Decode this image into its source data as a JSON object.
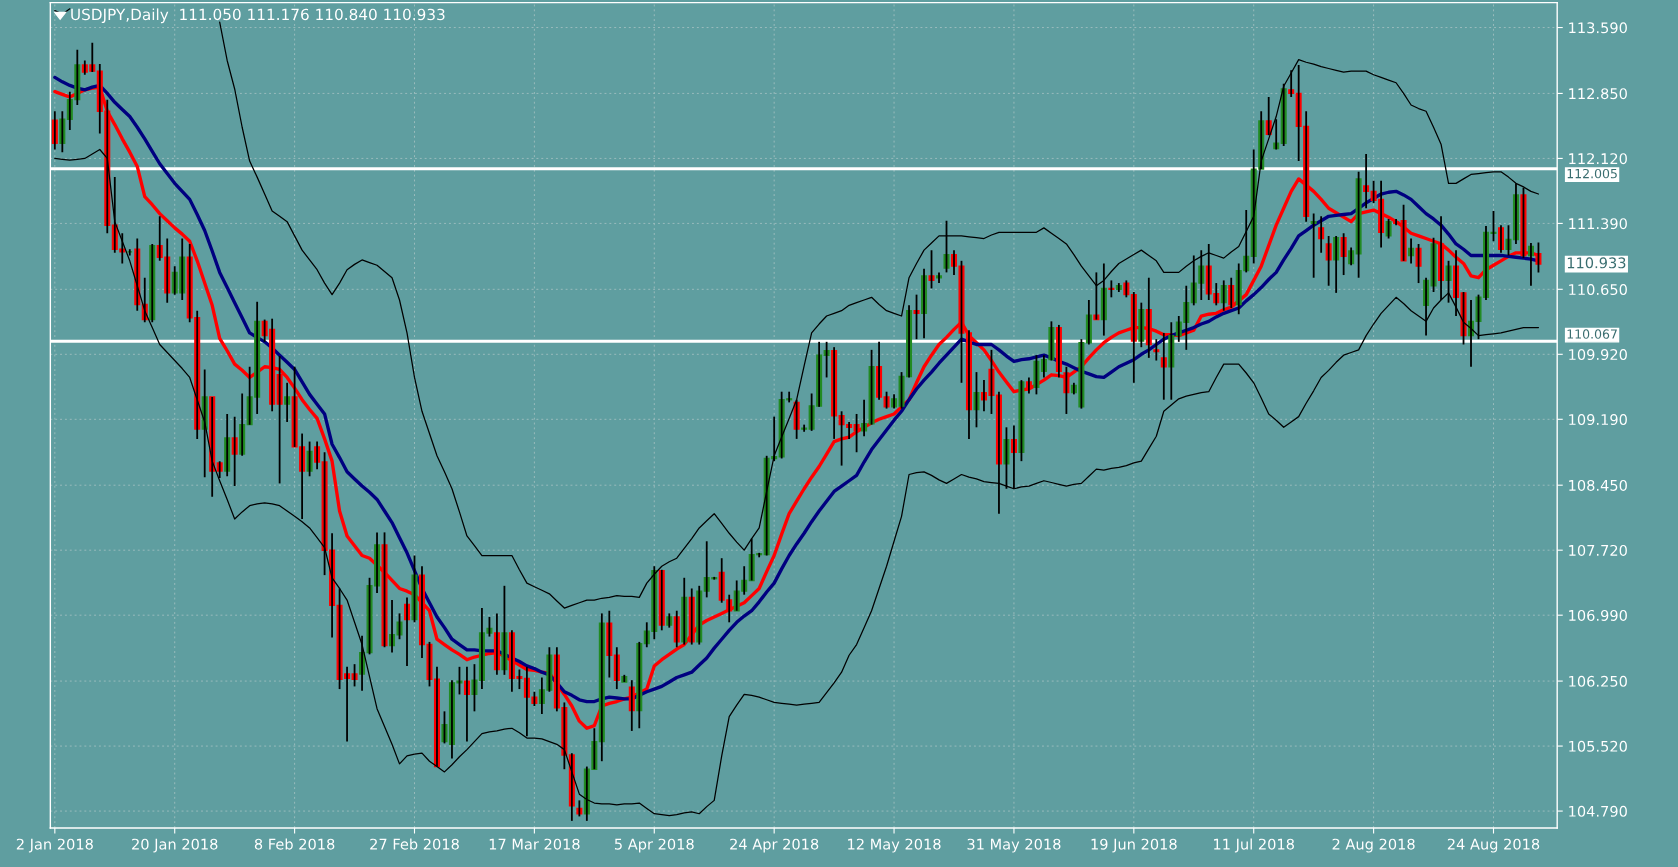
{
  "chart_data": {
    "type": "candlestick",
    "title": "USDJPY,Daily  111.050 111.176 110.840 110.933",
    "categories": [
      "2 Jan 2018",
      null,
      null,
      null,
      null,
      null,
      null,
      null,
      null,
      null,
      null,
      null,
      null,
      null,
      null,
      null,
      "20 Jan 2018",
      null,
      null,
      null,
      null,
      null,
      null,
      null,
      null,
      null,
      null,
      null,
      null,
      null,
      null,
      null,
      "8 Feb 2018",
      null,
      null,
      null,
      null,
      null,
      null,
      null,
      null,
      null,
      null,
      null,
      null,
      null,
      null,
      null,
      "27 Feb 2018",
      null,
      null,
      null,
      null,
      null,
      null,
      null,
      null,
      null,
      null,
      null,
      null,
      null,
      null,
      null,
      "17 Mar 2018",
      null,
      null,
      null,
      null,
      null,
      null,
      null,
      null,
      null,
      null,
      null,
      null,
      null,
      null,
      null,
      "5 Apr 2018",
      null,
      null,
      null,
      null,
      null,
      null,
      null,
      null,
      null,
      null,
      null,
      null,
      null,
      null,
      null,
      "24 Apr 2018",
      null,
      null,
      null,
      null,
      null,
      null,
      null,
      null,
      null,
      null,
      null,
      null,
      null,
      null,
      null,
      "12 May 2018",
      null,
      null,
      null,
      null,
      null,
      null,
      null,
      null,
      null,
      null,
      null,
      null,
      null,
      null,
      null,
      "31 May 2018",
      null,
      null,
      null,
      null,
      null,
      null,
      null,
      null,
      null,
      null,
      null,
      null,
      null,
      null,
      null,
      "19 Jun 2018",
      null,
      null,
      null,
      null,
      null,
      null,
      null,
      null,
      null,
      null,
      null,
      null,
      null,
      null,
      null,
      "11 Jul 2018",
      null,
      null,
      null,
      null,
      null,
      null,
      null,
      null,
      null,
      null,
      null,
      null,
      null,
      null,
      null,
      "2 Aug 2018",
      null,
      null,
      null,
      null,
      null,
      null,
      null,
      null,
      null,
      null,
      null,
      null,
      null,
      null,
      null,
      "24 Aug 2018",
      null,
      null,
      null,
      null,
      null,
      null
    ],
    "ohlc": [
      [
        112.55,
        112.65,
        112.22,
        112.29
      ],
      [
        112.29,
        112.65,
        112.19,
        112.56
      ],
      [
        112.56,
        112.87,
        112.44,
        112.78
      ],
      [
        112.78,
        113.34,
        112.72,
        113.17
      ],
      [
        113.17,
        113.22,
        113.06,
        113.09
      ],
      [
        113.17,
        113.42,
        113.09,
        113.1
      ],
      [
        113.1,
        113.18,
        112.4,
        112.65
      ],
      [
        112.65,
        112.78,
        111.28,
        111.37
      ],
      [
        111.37,
        111.91,
        111.06,
        111.1
      ],
      [
        111.1,
        111.28,
        110.94,
        111.07
      ],
      [
        111.07,
        111.1,
        111.03,
        111.07
      ],
      [
        111.1,
        111.22,
        110.41,
        110.48
      ],
      [
        110.48,
        110.78,
        110.28,
        110.31
      ],
      [
        110.31,
        111.16,
        110.28,
        111.14
      ],
      [
        111.14,
        111.47,
        110.97,
        111.01
      ],
      [
        111.01,
        111.22,
        110.5,
        110.61
      ],
      [
        110.61,
        110.91,
        110.59,
        110.84
      ],
      [
        110.61,
        111.22,
        110.53,
        111.01
      ],
      [
        111.01,
        111.16,
        110.28,
        110.33
      ],
      [
        110.33,
        110.41,
        108.97,
        109.08
      ],
      [
        109.08,
        109.75,
        108.54,
        109.44
      ],
      [
        109.44,
        109.44,
        108.32,
        108.61
      ],
      [
        108.7,
        108.72,
        108.53,
        108.61
      ],
      [
        108.61,
        109.25,
        108.55,
        108.98
      ],
      [
        108.98,
        109.22,
        108.44,
        108.8
      ],
      [
        108.8,
        109.48,
        108.78,
        109.13
      ],
      [
        109.13,
        109.78,
        109.13,
        109.44
      ],
      [
        109.44,
        110.51,
        109.25,
        110.29
      ],
      [
        110.29,
        110.31,
        110.06,
        110.13
      ],
      [
        110.2,
        110.32,
        109.28,
        109.36
      ],
      [
        109.69,
        109.9,
        108.47,
        109.36
      ],
      [
        109.36,
        109.6,
        109.16,
        109.44
      ],
      [
        109.44,
        109.78,
        108.88,
        108.88
      ],
      [
        108.88,
        109.03,
        108.07,
        108.61
      ],
      [
        108.61,
        108.94,
        108.55,
        108.83
      ],
      [
        108.88,
        108.94,
        108.63,
        108.71
      ],
      [
        108.71,
        108.82,
        107.44,
        107.72
      ],
      [
        107.72,
        107.91,
        106.74,
        107.1
      ],
      [
        107.1,
        107.29,
        106.16,
        106.27
      ],
      [
        106.33,
        106.41,
        105.57,
        106.28
      ],
      [
        106.33,
        106.44,
        106.19,
        106.27
      ],
      [
        106.33,
        106.76,
        106.14,
        106.57
      ],
      [
        106.57,
        107.41,
        106.55,
        107.32
      ],
      [
        107.32,
        107.92,
        107.24,
        107.78
      ],
      [
        107.78,
        107.92,
        106.63,
        106.65
      ],
      [
        106.65,
        107.16,
        106.57,
        106.77
      ],
      [
        106.77,
        107.01,
        106.72,
        106.91
      ],
      [
        107.11,
        107.19,
        106.42,
        106.94
      ],
      [
        106.94,
        107.66,
        106.91,
        107.44
      ],
      [
        107.44,
        107.54,
        106.51,
        106.66
      ],
      [
        106.66,
        106.69,
        106.19,
        106.27
      ],
      [
        106.27,
        106.41,
        105.29,
        105.29
      ],
      [
        105.57,
        105.91,
        105.55,
        105.76
      ],
      [
        105.54,
        106.26,
        105.38,
        106.23
      ],
      [
        106.23,
        106.41,
        106.1,
        106.25
      ],
      [
        106.25,
        106.41,
        105.57,
        106.1
      ],
      [
        106.1,
        106.44,
        105.91,
        106.26
      ],
      [
        106.26,
        107.07,
        106.16,
        106.79
      ],
      [
        106.79,
        106.97,
        106.75,
        106.84
      ],
      [
        106.79,
        107.01,
        106.32,
        106.38
      ],
      [
        106.38,
        107.32,
        106.32,
        106.79
      ],
      [
        106.79,
        106.82,
        106.13,
        106.28
      ],
      [
        106.3,
        106.38,
        106.16,
        106.28
      ],
      [
        106.28,
        106.41,
        105.63,
        106.07
      ],
      [
        106.07,
        106.13,
        105.97,
        106.0
      ],
      [
        106.0,
        106.29,
        105.88,
        106.15
      ],
      [
        106.15,
        106.63,
        106.13,
        106.54
      ],
      [
        106.54,
        106.63,
        105.91,
        105.95
      ],
      [
        105.95,
        106.01,
        105.26,
        105.42
      ],
      [
        105.42,
        105.44,
        104.68,
        104.85
      ],
      [
        104.82,
        104.91,
        104.73,
        104.76
      ],
      [
        104.76,
        105.29,
        104.68,
        105.26
      ],
      [
        105.26,
        105.72,
        105.26,
        105.57
      ],
      [
        105.57,
        107.01,
        105.35,
        106.9
      ],
      [
        106.9,
        107.04,
        106.29,
        106.54
      ],
      [
        106.54,
        106.63,
        106.16,
        106.26
      ],
      [
        106.24,
        106.32,
        106.24,
        106.3
      ],
      [
        106.18,
        106.26,
        105.69,
        105.92
      ],
      [
        105.92,
        106.69,
        105.72,
        106.67
      ],
      [
        106.67,
        106.91,
        106.63,
        106.81
      ],
      [
        106.81,
        107.54,
        106.72,
        107.49
      ],
      [
        107.49,
        107.5,
        106.82,
        106.88
      ],
      [
        106.88,
        107.01,
        106.85,
        106.97
      ],
      [
        106.97,
        107.04,
        106.63,
        106.69
      ],
      [
        106.69,
        107.41,
        106.66,
        107.19
      ],
      [
        107.19,
        107.29,
        106.66,
        106.69
      ],
      [
        106.69,
        107.32,
        106.66,
        107.26
      ],
      [
        107.26,
        107.82,
        107.19,
        107.41
      ],
      [
        107.4,
        107.42,
        107.39,
        107.41
      ],
      [
        107.47,
        107.63,
        107.13,
        107.16
      ],
      [
        107.16,
        107.22,
        106.91,
        107.04
      ],
      [
        107.04,
        107.38,
        107.04,
        107.26
      ],
      [
        107.26,
        107.54,
        107.22,
        107.38
      ],
      [
        107.38,
        107.85,
        107.38,
        107.67
      ],
      [
        107.67,
        107.69,
        107.64,
        107.68
      ],
      [
        107.67,
        108.78,
        107.66,
        108.75
      ],
      [
        108.75,
        109.22,
        108.72,
        108.77
      ],
      [
        108.77,
        109.5,
        108.75,
        109.41
      ],
      [
        109.41,
        109.5,
        109.38,
        109.42
      ],
      [
        109.38,
        109.41,
        108.97,
        109.08
      ],
      [
        109.08,
        109.13,
        109.05,
        109.09
      ],
      [
        109.08,
        109.48,
        109.06,
        109.34
      ],
      [
        109.34,
        110.06,
        109.33,
        109.91
      ],
      [
        109.91,
        110.06,
        109.66,
        109.96
      ],
      [
        109.96,
        110.0,
        108.97,
        109.23
      ],
      [
        109.23,
        109.28,
        108.67,
        109.13
      ],
      [
        109.13,
        109.16,
        108.97,
        109.1
      ],
      [
        109.13,
        109.25,
        108.82,
        109.06
      ],
      [
        109.06,
        109.41,
        109.0,
        109.14
      ],
      [
        109.14,
        109.97,
        109.13,
        109.78
      ],
      [
        109.78,
        110.06,
        109.41,
        109.44
      ],
      [
        109.44,
        109.5,
        109.31,
        109.33
      ],
      [
        109.33,
        109.47,
        109.31,
        109.42
      ],
      [
        109.34,
        109.72,
        109.31,
        109.67
      ],
      [
        109.67,
        110.47,
        109.66,
        110.41
      ],
      [
        110.41,
        110.59,
        110.09,
        110.38
      ],
      [
        110.38,
        110.88,
        110.1,
        110.8
      ],
      [
        110.8,
        111.09,
        110.66,
        110.75
      ],
      [
        110.78,
        110.84,
        110.72,
        110.8
      ],
      [
        110.89,
        111.42,
        110.84,
        111.04
      ],
      [
        111.04,
        111.09,
        110.81,
        110.91
      ],
      [
        110.91,
        110.97,
        109.6,
        110.16
      ],
      [
        110.16,
        110.19,
        108.97,
        109.3
      ],
      [
        109.3,
        109.72,
        109.1,
        109.49
      ],
      [
        109.49,
        109.63,
        109.28,
        109.41
      ],
      [
        109.75,
        109.97,
        109.25,
        109.46
      ],
      [
        109.46,
        109.5,
        108.13,
        108.69
      ],
      [
        108.69,
        109.1,
        108.41,
        108.96
      ],
      [
        108.96,
        109.12,
        108.41,
        108.82
      ],
      [
        108.82,
        109.63,
        108.72,
        109.61
      ],
      [
        109.61,
        109.66,
        109.48,
        109.55
      ],
      [
        109.55,
        109.91,
        109.47,
        109.84
      ],
      [
        109.73,
        109.91,
        109.66,
        109.86
      ],
      [
        109.86,
        110.29,
        109.85,
        110.22
      ],
      [
        110.22,
        110.25,
        109.66,
        109.73
      ],
      [
        109.71,
        109.78,
        109.25,
        109.49
      ],
      [
        109.49,
        109.6,
        109.47,
        109.57
      ],
      [
        109.33,
        110.09,
        109.31,
        110.05
      ],
      [
        110.05,
        110.53,
        110.03,
        110.36
      ],
      [
        110.36,
        110.84,
        110.31,
        110.31
      ],
      [
        110.31,
        110.94,
        110.13,
        110.66
      ],
      [
        110.66,
        110.75,
        110.56,
        110.65
      ],
      [
        110.65,
        110.72,
        110.62,
        110.69
      ],
      [
        110.72,
        110.75,
        110.56,
        110.59
      ],
      [
        110.59,
        110.62,
        109.6,
        110.07
      ],
      [
        110.07,
        110.5,
        110.0,
        110.42
      ],
      [
        110.42,
        110.78,
        109.88,
        110.03
      ],
      [
        109.97,
        110.09,
        109.85,
        109.95
      ],
      [
        109.88,
        110.16,
        109.41,
        109.78
      ],
      [
        109.78,
        110.28,
        109.41,
        110.13
      ],
      [
        110.13,
        110.35,
        110.06,
        110.28
      ],
      [
        110.28,
        110.69,
        109.97,
        110.5
      ],
      [
        110.5,
        111.03,
        110.47,
        110.72
      ],
      [
        110.72,
        111.09,
        110.53,
        110.91
      ],
      [
        110.91,
        111.16,
        110.53,
        110.6
      ],
      [
        110.6,
        110.72,
        110.47,
        110.5
      ],
      [
        110.5,
        110.75,
        110.41,
        110.69
      ],
      [
        110.69,
        110.78,
        110.44,
        110.48
      ],
      [
        110.48,
        110.94,
        110.37,
        110.86
      ],
      [
        110.86,
        111.54,
        110.84,
        111.02
      ],
      [
        111.02,
        112.22,
        110.94,
        112.0
      ],
      [
        112.0,
        112.65,
        112.0,
        112.54
      ],
      [
        112.54,
        112.81,
        112.38,
        112.39
      ],
      [
        112.23,
        112.56,
        112.22,
        112.29
      ],
      [
        112.29,
        112.96,
        112.26,
        112.9
      ],
      [
        112.89,
        113.11,
        112.81,
        112.85
      ],
      [
        112.85,
        113.17,
        112.09,
        112.48
      ],
      [
        112.48,
        112.65,
        111.41,
        111.47
      ],
      [
        111.39,
        111.5,
        110.78,
        111.41
      ],
      [
        111.34,
        111.47,
        111.06,
        111.22
      ],
      [
        111.16,
        111.25,
        110.69,
        110.98
      ],
      [
        110.98,
        111.25,
        110.61,
        111.23
      ],
      [
        111.23,
        111.28,
        110.81,
        111.02
      ],
      [
        110.94,
        111.12,
        110.92,
        111.08
      ],
      [
        111.05,
        111.97,
        110.78,
        111.89
      ],
      [
        111.81,
        112.17,
        111.56,
        111.75
      ],
      [
        111.75,
        111.87,
        111.62,
        111.65
      ],
      [
        111.66,
        111.87,
        111.12,
        111.29
      ],
      [
        111.25,
        111.44,
        111.22,
        111.41
      ],
      [
        111.41,
        111.44,
        111.37,
        111.39
      ],
      [
        111.42,
        111.6,
        110.97,
        110.97
      ],
      [
        111.03,
        111.22,
        110.94,
        111.11
      ],
      [
        111.11,
        111.16,
        110.72,
        110.91
      ],
      [
        110.47,
        110.78,
        110.13,
        110.75
      ],
      [
        110.69,
        111.23,
        110.62,
        111.16
      ],
      [
        111.16,
        111.47,
        110.53,
        110.75
      ],
      [
        110.75,
        110.97,
        110.5,
        110.91
      ],
      [
        110.91,
        111.09,
        110.35,
        110.56
      ],
      [
        110.61,
        110.62,
        110.03,
        110.13
      ],
      [
        110.13,
        110.53,
        109.78,
        110.29
      ],
      [
        110.29,
        110.59,
        110.09,
        110.56
      ],
      [
        110.56,
        111.36,
        110.53,
        111.29
      ],
      [
        111.28,
        111.53,
        111.19,
        111.29
      ],
      [
        111.34,
        111.37,
        111.06,
        111.1
      ],
      [
        111.1,
        111.37,
        111.03,
        111.21
      ],
      [
        111.21,
        111.84,
        111.16,
        111.71
      ],
      [
        111.71,
        111.79,
        111.0,
        111.03
      ],
      [
        111.03,
        111.17,
        110.69,
        111.13
      ],
      [
        111.05,
        111.176,
        110.84,
        110.933
      ]
    ],
    "colors": [
      "#ff0000",
      "#228b22",
      "#228b22",
      "#228b22",
      "#ff0000",
      "#ff0000",
      "#ff0000",
      "#ff0000",
      "#ff0000",
      "#ff0000",
      "#228b22",
      "#ff0000",
      "#ff0000",
      "#228b22",
      "#ff0000",
      "#ff0000",
      "#228b22",
      "#228b22",
      "#ff0000",
      "#ff0000",
      "#228b22",
      "#ff0000",
      "#ff0000",
      "#228b22",
      "#ff0000",
      "#228b22",
      "#228b22",
      "#228b22",
      "#ff0000",
      "#ff0000",
      "#ff0000",
      "#228b22",
      "#ff0000",
      "#ff0000",
      "#228b22",
      "#ff0000",
      "#ff0000",
      "#ff0000",
      "#ff0000",
      "#ff0000",
      "#ff0000",
      "#228b22",
      "#228b22",
      "#228b22",
      "#ff0000",
      "#228b22",
      "#228b22",
      "#ff0000",
      "#228b22",
      "#ff0000",
      "#ff0000",
      "#ff0000",
      "#228b22",
      "#228b22",
      "#228b22",
      "#ff0000",
      "#228b22",
      "#228b22",
      "#228b22",
      "#ff0000",
      "#228b22",
      "#ff0000",
      "#ff0000",
      "#ff0000",
      "#ff0000",
      "#228b22",
      "#228b22",
      "#ff0000",
      "#ff0000",
      "#ff0000",
      "#ff0000",
      "#228b22",
      "#228b22",
      "#228b22",
      "#ff0000",
      "#ff0000",
      "#228b22",
      "#ff0000",
      "#228b22",
      "#228b22",
      "#228b22",
      "#ff0000",
      "#228b22",
      "#ff0000",
      "#228b22",
      "#ff0000",
      "#228b22",
      "#228b22",
      "#228b22",
      "#ff0000",
      "#ff0000",
      "#228b22",
      "#228b22",
      "#228b22",
      "#228b22",
      "#228b22",
      "#228b22",
      "#228b22",
      "#228b22",
      "#ff0000",
      "#228b22",
      "#228b22",
      "#228b22",
      "#228b22",
      "#ff0000",
      "#ff0000",
      "#ff0000",
      "#ff0000",
      "#228b22",
      "#228b22",
      "#ff0000",
      "#ff0000",
      "#228b22",
      "#228b22",
      "#228b22",
      "#ff0000",
      "#228b22",
      "#ff0000",
      "#228b22",
      "#228b22",
      "#ff0000",
      "#ff0000",
      "#ff0000",
      "#228b22",
      "#ff0000",
      "#ff0000",
      "#ff0000",
      "#228b22",
      "#ff0000",
      "#228b22",
      "#ff0000",
      "#228b22",
      "#228b22",
      "#228b22",
      "#ff0000",
      "#ff0000",
      "#228b22",
      "#228b22",
      "#228b22",
      "#ff0000",
      "#228b22",
      "#ff0000",
      "#228b22",
      "#ff0000",
      "#ff0000",
      "#228b22",
      "#ff0000",
      "#ff0000",
      "#ff0000",
      "#228b22",
      "#228b22",
      "#228b22",
      "#228b22",
      "#228b22",
      "#ff0000",
      "#ff0000",
      "#228b22",
      "#ff0000",
      "#228b22",
      "#228b22",
      "#228b22",
      "#228b22",
      "#ff0000",
      "#228b22",
      "#228b22",
      "#ff0000",
      "#ff0000",
      "#ff0000",
      "#228b22",
      "#ff0000",
      "#ff0000",
      "#228b22",
      "#ff0000",
      "#228b22",
      "#228b22",
      "#ff0000",
      "#ff0000",
      "#ff0000",
      "#228b22",
      "#ff0000",
      "#ff0000",
      "#228b22",
      "#ff0000",
      "#228b22",
      "#228b22",
      "#ff0000",
      "#228b22",
      "#ff0000",
      "#ff0000",
      "#228b22",
      "#228b22",
      "#228b22",
      "#228b22",
      "#ff0000",
      "#228b22",
      "#228b22",
      "#ff0000",
      "#228b22",
      "#ff0000"
    ],
    "series": [
      {
        "type": "line",
        "color": "#000000",
        "values": [
          113.78,
          113.74,
          113.8,
          null,
          null,
          null,
          null,
          null,
          null,
          null,
          null,
          null,
          null,
          null,
          null,
          null,
          null,
          null,
          null,
          null,
          null,
          null,
          113.65,
          113.22,
          112.9,
          112.47,
          112.09,
          111.91,
          111.72,
          111.53,
          111.47,
          111.41,
          111.25,
          111.09,
          110.98,
          110.87,
          110.72,
          110.59,
          110.72,
          110.87,
          110.93,
          110.98,
          110.95,
          110.92,
          110.85,
          110.78,
          110.53,
          110.16,
          109.66,
          109.28,
          109.03,
          108.78,
          108.6,
          108.41,
          108.15,
          107.88,
          107.77,
          107.66,
          107.66,
          107.66,
          107.66,
          107.66,
          107.5,
          107.35,
          107.31,
          107.27,
          107.23,
          107.15,
          107.07,
          107.1,
          107.13,
          107.16,
          107.16,
          107.18,
          107.19,
          107.21,
          107.2,
          107.2,
          107.19,
          107.35,
          107.45,
          107.54,
          107.59,
          107.63,
          107.74,
          107.85,
          107.97,
          108.05,
          108.13,
          108.02,
          107.91,
          107.81,
          107.72,
          107.85,
          107.97,
          108.38,
          108.78,
          108.99,
          109.2,
          109.41,
          109.79,
          110.16,
          110.26,
          110.35,
          110.38,
          110.41,
          110.47,
          110.5,
          110.53,
          110.56,
          110.48,
          110.41,
          110.38,
          110.35,
          110.78,
          110.94,
          111.09,
          111.17,
          111.25,
          111.25,
          111.25,
          111.25,
          111.24,
          111.23,
          111.22,
          111.26,
          111.29,
          111.29,
          111.29,
          111.29,
          111.29,
          111.29,
          111.34,
          111.28,
          111.22,
          111.16,
          111.04,
          110.91,
          110.8,
          110.69,
          110.75,
          110.85,
          110.94,
          110.99,
          111.04,
          111.09,
          111.03,
          110.97,
          110.84,
          110.84,
          110.84,
          110.91,
          110.97,
          111.02,
          111.06,
          111.03,
          111.0,
          111.07,
          111.13,
          111.3,
          111.47,
          112.09,
          112.34,
          112.59,
          112.93,
          113.08,
          113.23,
          113.2,
          113.18,
          113.15,
          113.13,
          113.11,
          113.09,
          113.1,
          113.1,
          113.1,
          113.06,
          113.03,
          113.0,
          112.97,
          112.85,
          112.72,
          112.68,
          112.65,
          112.47,
          112.28,
          111.84,
          111.84,
          111.89,
          111.94,
          111.95,
          111.96,
          111.97,
          111.97,
          111.91,
          111.84,
          111.8,
          111.75,
          111.72
        ]
      },
      {
        "type": "line",
        "color": "#000000",
        "values": [
          112.12,
          112.11,
          112.1,
          112.11,
          112.12,
          112.17,
          112.22,
          112.12,
          111.41,
          111.19,
          110.97,
          110.69,
          110.41,
          110.22,
          110.03,
          109.94,
          109.85,
          109.76,
          109.66,
          109.41,
          109.16,
          108.72,
          108.5,
          108.29,
          108.07,
          108.15,
          108.22,
          108.24,
          108.25,
          108.24,
          108.22,
          108.16,
          108.1,
          108.04,
          107.97,
          107.86,
          107.75,
          107.41,
          107.29,
          107.16,
          106.91,
          106.66,
          106.3,
          105.94,
          105.74,
          105.54,
          105.32,
          105.41,
          105.43,
          105.44,
          105.35,
          105.29,
          105.23,
          105.31,
          105.4,
          105.48,
          105.57,
          105.66,
          105.68,
          105.69,
          105.71,
          105.72,
          105.67,
          105.61,
          105.61,
          105.6,
          105.57,
          105.54,
          105.48,
          105.23,
          104.98,
          104.92,
          104.88,
          104.87,
          104.87,
          104.86,
          104.87,
          104.87,
          104.88,
          104.82,
          104.76,
          104.75,
          104.74,
          104.75,
          104.77,
          104.78,
          104.76,
          104.84,
          104.91,
          105.41,
          105.85,
          105.98,
          106.1,
          106.09,
          106.07,
          106.04,
          106.01,
          106.0,
          105.99,
          105.98,
          105.99,
          106.0,
          106.01,
          106.12,
          106.23,
          106.35,
          106.54,
          106.66,
          106.85,
          107.04,
          107.29,
          107.54,
          107.82,
          108.1,
          108.57,
          108.59,
          108.6,
          108.56,
          108.51,
          108.47,
          108.52,
          108.57,
          108.54,
          108.52,
          108.49,
          108.48,
          108.47,
          108.44,
          108.41,
          108.43,
          108.44,
          108.47,
          108.5,
          108.48,
          108.46,
          108.44,
          108.46,
          108.47,
          108.55,
          108.63,
          108.62,
          108.64,
          108.65,
          108.67,
          108.7,
          108.72,
          108.86,
          109.0,
          109.28,
          109.35,
          109.42,
          109.45,
          109.47,
          109.49,
          109.5,
          109.66,
          109.81,
          109.81,
          109.81,
          109.71,
          109.6,
          109.43,
          109.25,
          109.18,
          109.1,
          109.16,
          109.22,
          109.37,
          109.51,
          109.66,
          109.74,
          109.83,
          109.91,
          109.94,
          109.97,
          110.13,
          110.26,
          110.38,
          110.47,
          110.56,
          110.49,
          110.41,
          110.35,
          110.29,
          110.44,
          110.53,
          110.61,
          110.45,
          110.28,
          110.21,
          110.13,
          110.14,
          110.15,
          110.16,
          110.18,
          110.2,
          110.22,
          110.22,
          110.22
        ]
      },
      {
        "type": "line",
        "color": "#ff0000",
        "values": [
          112.87,
          112.84,
          112.81,
          112.85,
          112.89,
          112.91,
          112.92,
          112.65,
          112.5,
          112.34,
          112.19,
          112.03,
          111.69,
          111.6,
          111.5,
          111.42,
          111.34,
          111.27,
          111.19,
          110.97,
          110.72,
          110.47,
          110.1,
          109.96,
          109.81,
          109.74,
          109.66,
          109.72,
          109.78,
          109.77,
          109.75,
          109.66,
          109.54,
          109.41,
          109.3,
          109.2,
          108.97,
          108.72,
          108.16,
          107.88,
          107.77,
          107.66,
          107.63,
          107.55,
          107.47,
          107.38,
          107.29,
          107.26,
          107.22,
          107.13,
          107.04,
          106.72,
          106.66,
          106.6,
          106.55,
          106.49,
          106.52,
          106.54,
          106.56,
          106.57,
          106.53,
          106.48,
          106.43,
          106.38,
          106.37,
          106.35,
          106.34,
          106.22,
          106.1,
          105.97,
          105.8,
          105.72,
          105.75,
          105.97,
          106.0,
          106.02,
          106.05,
          106.07,
          106.12,
          106.16,
          106.42,
          106.49,
          106.55,
          106.61,
          106.66,
          106.77,
          106.88,
          106.93,
          106.97,
          107.01,
          107.05,
          107.09,
          107.13,
          107.21,
          107.29,
          107.48,
          107.66,
          107.9,
          108.13,
          108.27,
          108.41,
          108.54,
          108.66,
          108.8,
          108.94,
          108.97,
          108.99,
          109.05,
          109.1,
          109.15,
          109.19,
          109.22,
          109.25,
          109.33,
          109.41,
          109.6,
          109.78,
          109.91,
          110.03,
          110.11,
          110.2,
          110.28,
          110.13,
          110.05,
          109.97,
          109.85,
          109.72,
          109.61,
          109.5,
          109.52,
          109.53,
          109.58,
          109.63,
          109.69,
          109.68,
          109.66,
          109.72,
          109.78,
          109.88,
          109.97,
          110.05,
          110.11,
          110.16,
          110.19,
          110.22,
          110.22,
          110.21,
          110.18,
          110.14,
          110.14,
          110.13,
          110.16,
          110.19,
          110.35,
          110.37,
          110.38,
          110.42,
          110.45,
          110.52,
          110.59,
          110.75,
          110.91,
          111.14,
          111.37,
          111.56,
          111.75,
          111.89,
          111.82,
          111.75,
          111.66,
          111.56,
          111.51,
          111.46,
          111.41,
          111.5,
          111.52,
          111.54,
          111.5,
          111.46,
          111.41,
          111.35,
          111.28,
          111.25,
          111.22,
          111.19,
          111.16,
          111.09,
          111.01,
          110.94,
          110.8,
          110.78,
          110.87,
          110.92,
          110.97,
          111.02,
          111.06,
          111.06,
          111.06,
          111.03
        ]
      },
      {
        "type": "line",
        "color": "#000080",
        "values": [
          113.03,
          112.98,
          112.94,
          112.91,
          112.89,
          112.92,
          112.94,
          112.85,
          112.75,
          112.67,
          112.59,
          112.47,
          112.34,
          112.2,
          112.06,
          111.95,
          111.84,
          111.75,
          111.66,
          111.49,
          111.31,
          111.08,
          110.84,
          110.67,
          110.5,
          110.33,
          110.16,
          110.11,
          110.06,
          109.99,
          109.91,
          109.83,
          109.75,
          109.61,
          109.47,
          109.36,
          109.25,
          108.91,
          108.76,
          108.6,
          108.52,
          108.44,
          108.37,
          108.29,
          108.16,
          108.03,
          107.86,
          107.69,
          107.49,
          107.29,
          107.13,
          106.97,
          106.85,
          106.72,
          106.66,
          106.6,
          106.6,
          106.59,
          106.59,
          106.59,
          106.55,
          106.51,
          106.47,
          106.42,
          106.39,
          106.35,
          106.32,
          106.23,
          106.13,
          106.09,
          106.04,
          106.02,
          106.02,
          106.05,
          106.07,
          106.06,
          106.05,
          106.05,
          106.09,
          106.13,
          106.16,
          106.19,
          106.24,
          106.29,
          106.32,
          106.35,
          106.43,
          106.51,
          106.62,
          106.72,
          106.82,
          106.91,
          106.98,
          107.04,
          107.14,
          107.25,
          107.35,
          107.51,
          107.66,
          107.79,
          107.91,
          108.04,
          108.16,
          108.27,
          108.38,
          108.44,
          108.5,
          108.56,
          108.71,
          108.85,
          108.96,
          109.07,
          109.18,
          109.28,
          109.41,
          109.53,
          109.63,
          109.72,
          109.82,
          109.91,
          110.0,
          110.09,
          110.06,
          110.03,
          110.03,
          110.03,
          109.97,
          109.9,
          109.84,
          109.86,
          109.87,
          109.89,
          109.91,
          109.88,
          109.84,
          109.81,
          109.77,
          109.73,
          109.7,
          109.67,
          109.66,
          109.72,
          109.78,
          109.82,
          109.86,
          109.92,
          109.97,
          110.03,
          110.09,
          110.13,
          110.16,
          110.19,
          110.22,
          110.26,
          110.29,
          110.34,
          110.38,
          110.41,
          110.44,
          110.52,
          110.59,
          110.67,
          110.76,
          110.84,
          110.98,
          111.11,
          111.25,
          111.31,
          111.37,
          111.42,
          111.47,
          111.48,
          111.49,
          111.5,
          111.56,
          111.62,
          111.67,
          111.72,
          111.74,
          111.75,
          111.71,
          111.66,
          111.58,
          111.5,
          111.44,
          111.37,
          111.27,
          111.16,
          111.1,
          111.03,
          111.03,
          111.03,
          111.03,
          111.03,
          111.02,
          111.01,
          111.0,
          110.99,
          110.97
        ]
      }
    ],
    "ylim": [
      104.6,
      113.87
    ],
    "yticks": [
      {
        "value": 113.59,
        "label": "113.590"
      },
      {
        "value": 112.85,
        "label": "112.850"
      },
      {
        "value": 112.12,
        "label": "112.120"
      },
      {
        "value": 111.39,
        "label": "111.390"
      },
      {
        "value": 110.65,
        "label": "110.650"
      },
      {
        "value": 109.92,
        "label": "109.920"
      },
      {
        "value": 109.19,
        "label": "109.190"
      },
      {
        "value": 108.45,
        "label": "108.450"
      },
      {
        "value": 107.72,
        "label": "107.720"
      },
      {
        "value": 106.99,
        "label": "106.990"
      },
      {
        "value": 106.25,
        "label": "106.250"
      },
      {
        "value": 105.52,
        "label": "105.520"
      },
      {
        "value": 104.79,
        "label": "104.790"
      }
    ],
    "ref_lines": [
      {
        "axis": "y",
        "value": 112.005,
        "label": "112.005",
        "color": "#ffffff"
      },
      {
        "axis": "y",
        "value": 110.067,
        "label": "110.067",
        "color": "#ffffff"
      }
    ],
    "annotations": [
      "110.933"
    ],
    "grid": true
  }
}
